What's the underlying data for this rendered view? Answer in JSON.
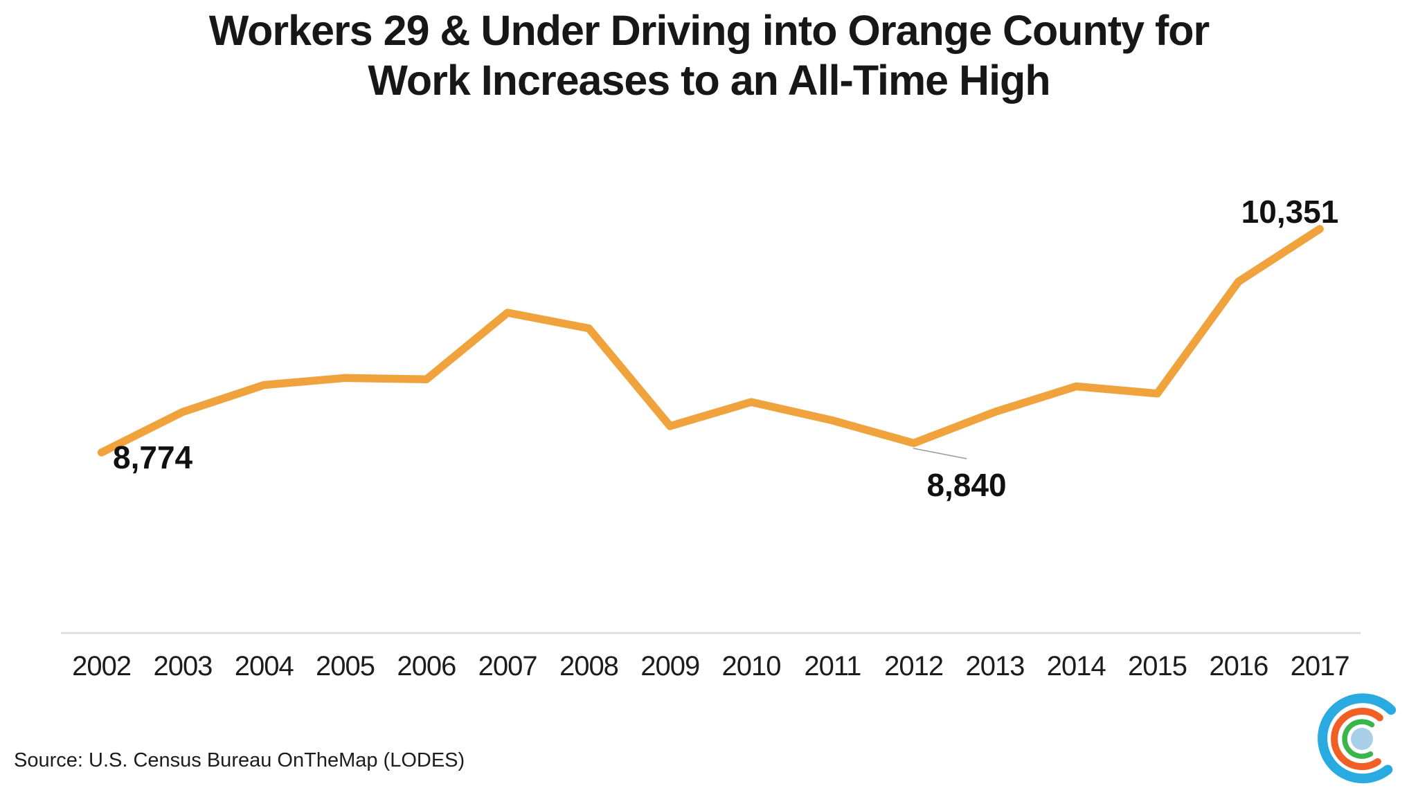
{
  "header": {
    "title_lines": [
      "Workers 29 & Under Driving into Orange County for",
      "Work Increases to an All-Time High"
    ]
  },
  "chart_data": {
    "type": "line",
    "title": "Workers 29 & Under Driving into Orange County for Work Increases to an All-Time High",
    "xlabel": "",
    "ylabel": "",
    "categories": [
      "2002",
      "2003",
      "2004",
      "2005",
      "2006",
      "2007",
      "2008",
      "2009",
      "2010",
      "2011",
      "2012",
      "2013",
      "2014",
      "2015",
      "2016",
      "2017"
    ],
    "series": [
      {
        "name": "Workers 29 & under driving into Orange County",
        "values": [
          8774,
          9060,
          9250,
          9300,
          9290,
          9760,
          9650,
          8960,
          9130,
          9000,
          8840,
          9060,
          9240,
          9190,
          9980,
          10351
        ]
      }
    ],
    "ylim": [
      7500,
      11000
    ],
    "grid": "off",
    "legend": "none",
    "line_color": "#F0A23C",
    "axis_color": "#D8D8DC",
    "annotations": [
      {
        "year": "2002",
        "label": "8,774"
      },
      {
        "year": "2012",
        "label": "8,840",
        "leader_line": true
      },
      {
        "year": "2017",
        "label": "10,351"
      }
    ]
  },
  "footer": {
    "source_text": "Source: U.S. Census Bureau OnTheMap (LODES)"
  },
  "logo": {
    "name": "concentric-c-logo",
    "colors": {
      "outer": "#29ABE2",
      "middle": "#F15F24",
      "inner": "#3AB54A",
      "center_dot": "#A9CFE8"
    }
  }
}
